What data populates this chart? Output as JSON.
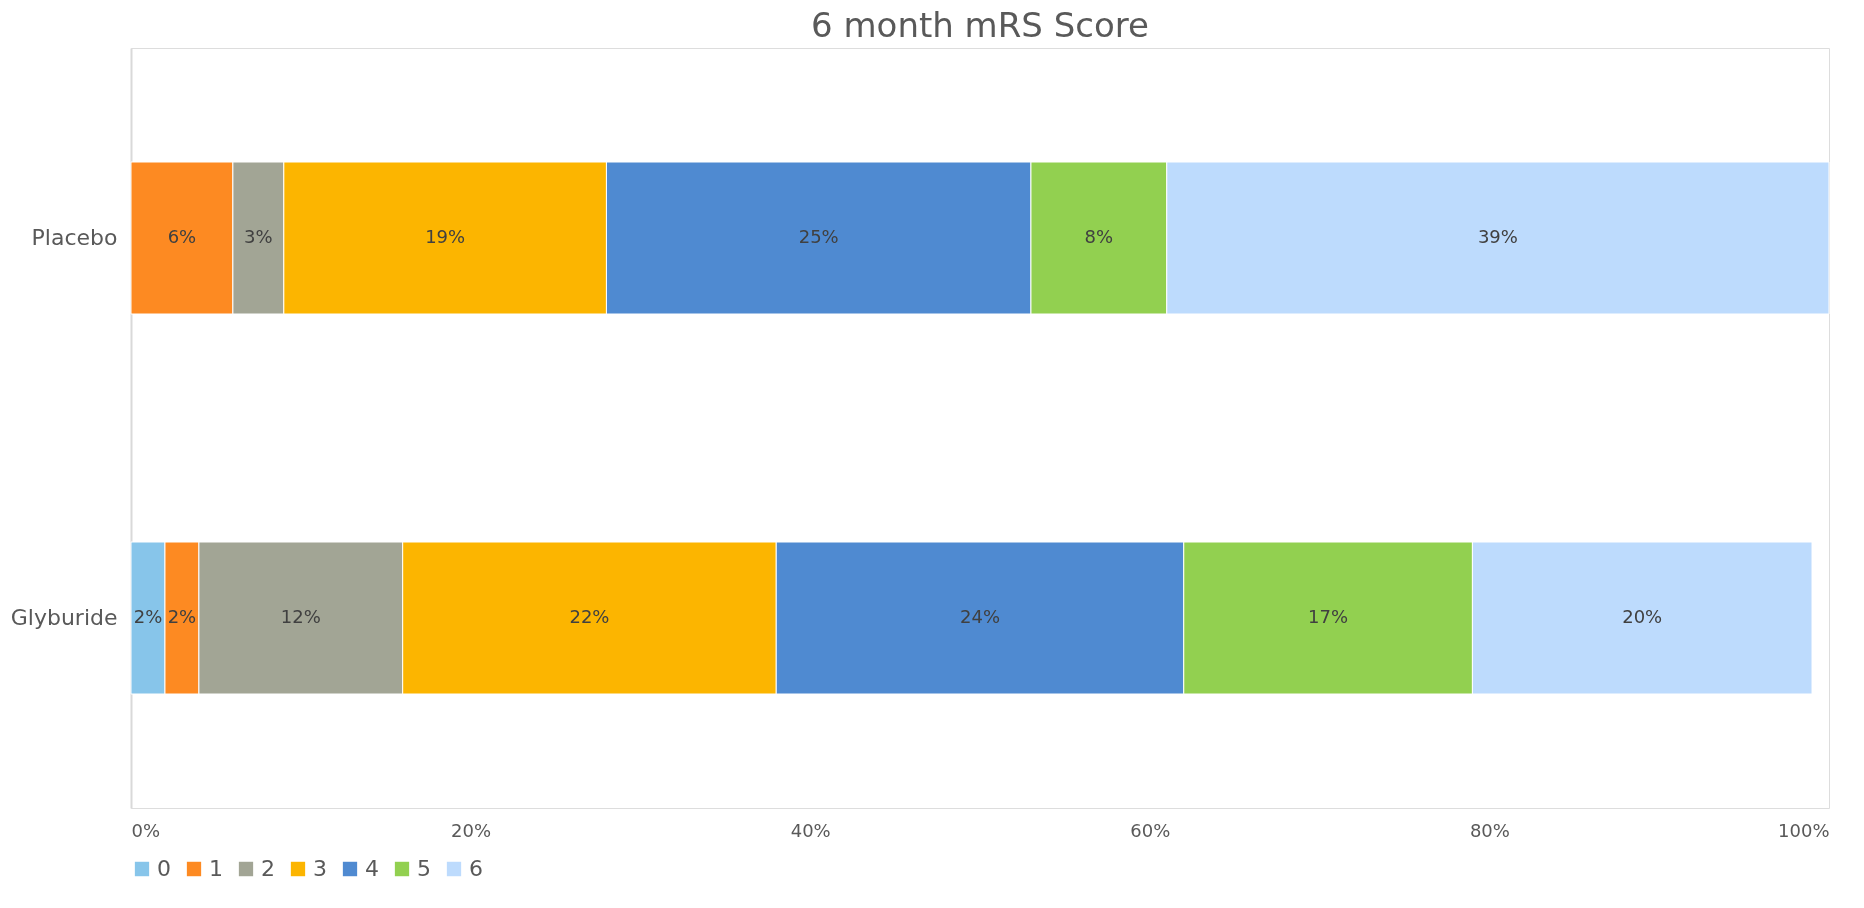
{
  "chart_data": {
    "type": "bar",
    "orientation": "horizontal",
    "stacked": true,
    "title": "6 month mRS Score",
    "categories": [
      "Placebo",
      "Glyburide"
    ],
    "series": [
      {
        "name": "0",
        "color": "#87c5ea",
        "values": [
          null,
          2
        ],
        "value_labels": [
          null,
          "2%"
        ]
      },
      {
        "name": "1",
        "color": "#fd8a22",
        "values": [
          6,
          2
        ],
        "value_labels": [
          "6%",
          "2%"
        ]
      },
      {
        "name": "2",
        "color": "#a2a595",
        "values": [
          3,
          12
        ],
        "value_labels": [
          "3%",
          "12%"
        ]
      },
      {
        "name": "3",
        "color": "#fcb500",
        "values": [
          19,
          22
        ],
        "value_labels": [
          "19%",
          "22%"
        ]
      },
      {
        "name": "4",
        "color": "#4f8ad1",
        "values": [
          25,
          24
        ],
        "value_labels": [
          "25%",
          "24%"
        ]
      },
      {
        "name": "5",
        "color": "#92d050",
        "values": [
          8,
          17
        ],
        "value_labels": [
          "8%",
          "17%"
        ]
      },
      {
        "name": "6",
        "color": "#bddbfd",
        "values": [
          39,
          20
        ],
        "value_labels": [
          "39%",
          "20%"
        ]
      }
    ],
    "xlim": [
      0,
      100
    ],
    "xticks": [
      {
        "value": 0,
        "label": "0%"
      },
      {
        "value": 20,
        "label": "20%"
      },
      {
        "value": 40,
        "label": "40%"
      },
      {
        "value": 60,
        "label": "60%"
      },
      {
        "value": 80,
        "label": "80%"
      },
      {
        "value": 100,
        "label": "100%"
      }
    ],
    "grid": false,
    "legend": "bottom"
  }
}
